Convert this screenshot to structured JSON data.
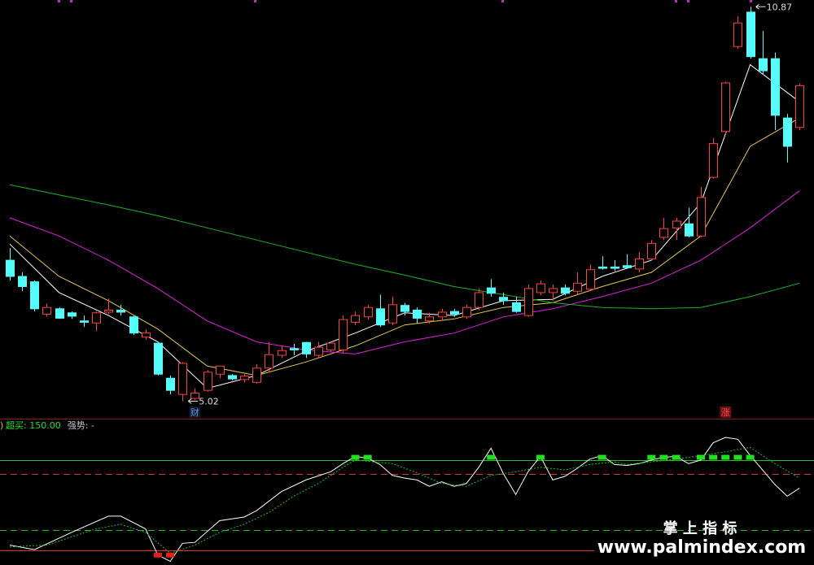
{
  "chart_data": [
    {
      "type": "candlestick",
      "ylim": [
        4.76,
        10.97
      ],
      "up_color": "#ff4040",
      "down_color": "#54fcfc",
      "open": [
        7.11,
        6.87,
        6.79,
        6.31,
        6.39,
        6.33,
        6.21,
        6.18,
        6.34,
        6.37,
        6.27,
        5.97,
        5.88,
        5.36,
        5.12,
        5.06,
        5.18,
        5.42,
        5.4,
        5.34,
        5.3,
        5.51,
        5.7,
        5.8,
        5.89,
        5.7,
        5.78,
        5.78,
        6.19,
        6.27,
        6.39,
        6.18,
        6.44,
        6.37,
        6.21,
        6.27,
        6.35,
        6.27,
        6.41,
        6.7,
        6.56,
        6.48,
        6.29,
        6.63,
        6.63,
        6.7,
        6.65,
        6.68,
        7.01,
        7.01,
        7.03,
        6.98,
        7.13,
        7.45,
        7.59,
        7.65,
        7.47,
        8.34,
        9.02,
        10.28,
        10.79,
        10.1,
        10.1,
        9.22,
        9.08
      ],
      "close": [
        6.87,
        6.72,
        6.39,
        6.41,
        6.25,
        6.28,
        6.19,
        6.33,
        6.37,
        6.34,
        6.03,
        6.03,
        5.42,
        5.18,
        5.58,
        5.14,
        5.45,
        5.54,
        5.35,
        5.39,
        5.51,
        5.71,
        5.77,
        5.78,
        5.72,
        5.82,
        5.88,
        6.23,
        6.29,
        6.41,
        6.15,
        6.45,
        6.35,
        6.25,
        6.27,
        6.34,
        6.31,
        6.41,
        6.63,
        6.62,
        6.51,
        6.35,
        6.69,
        6.76,
        6.69,
        6.62,
        6.77,
        6.97,
        6.99,
        6.99,
        7.0,
        7.13,
        7.36,
        7.58,
        7.69,
        7.47,
        8.04,
        8.84,
        9.74,
        10.63,
        10.13,
        9.92,
        9.26,
        8.8,
        9.7
      ],
      "high": [
        7.29,
        6.93,
        6.81,
        6.47,
        6.41,
        6.35,
        6.29,
        6.35,
        6.54,
        6.45,
        6.29,
        6.09,
        5.9,
        5.4,
        5.6,
        5.21,
        5.48,
        5.54,
        5.42,
        5.42,
        5.57,
        5.9,
        5.84,
        5.87,
        5.9,
        5.9,
        5.9,
        6.29,
        6.35,
        6.45,
        6.6,
        6.57,
        6.48,
        6.41,
        6.33,
        6.39,
        6.39,
        6.45,
        6.69,
        6.83,
        6.63,
        6.57,
        6.75,
        6.81,
        6.75,
        6.75,
        6.93,
        7.05,
        7.17,
        7.11,
        7.2,
        7.23,
        7.41,
        7.74,
        7.74,
        7.89,
        8.2,
        8.92,
        9.76,
        10.73,
        10.87,
        10.51,
        10.19,
        9.28,
        9.73
      ],
      "low": [
        6.81,
        6.65,
        6.35,
        6.27,
        6.24,
        6.24,
        6.12,
        6.06,
        6.31,
        6.29,
        6.0,
        5.93,
        5.4,
        5.12,
        5.02,
        5.04,
        5.16,
        5.36,
        5.33,
        5.3,
        5.28,
        5.45,
        5.66,
        5.7,
        5.66,
        5.66,
        5.75,
        5.72,
        6.15,
        6.23,
        6.12,
        6.15,
        6.29,
        6.17,
        6.17,
        6.21,
        6.27,
        6.24,
        6.37,
        6.57,
        6.45,
        6.33,
        6.27,
        6.59,
        6.51,
        6.59,
        6.6,
        6.65,
        6.97,
        6.95,
        6.98,
        6.93,
        7.11,
        7.41,
        7.41,
        7.45,
        7.45,
        8.32,
        8.98,
        10.25,
        10.1,
        9.86,
        9.04,
        8.56,
        9.04
      ],
      "moving_averages": [
        {
          "color": "#ffffff",
          "x": [
            0,
            4,
            8,
            12,
            16,
            20,
            24,
            28,
            32,
            36,
            40,
            44,
            48,
            52,
            56,
            60,
            64
          ],
          "values": [
            7.35,
            6.63,
            6.29,
            5.9,
            5.21,
            5.4,
            5.76,
            6.03,
            6.33,
            6.29,
            6.51,
            6.53,
            6.87,
            7.11,
            7.96,
            10.01,
            9.46
          ]
        },
        {
          "color": "#e8c850",
          "x": [
            0,
            4,
            8,
            12,
            16,
            20,
            24,
            28,
            32,
            36,
            40,
            44,
            48,
            52,
            56,
            60,
            64
          ],
          "values": [
            7.47,
            6.87,
            6.51,
            6.09,
            5.54,
            5.4,
            5.6,
            5.84,
            6.15,
            6.24,
            6.41,
            6.48,
            6.72,
            6.93,
            7.47,
            8.8,
            9.22
          ]
        },
        {
          "color": "#e020e0",
          "x": [
            0,
            4,
            8,
            12,
            16,
            20,
            24,
            28,
            32,
            36,
            40,
            44,
            48,
            52,
            56,
            60,
            64
          ],
          "values": [
            7.74,
            7.47,
            7.11,
            6.69,
            6.21,
            5.9,
            5.78,
            5.72,
            5.9,
            6.03,
            6.27,
            6.39,
            6.57,
            6.77,
            7.11,
            7.59,
            8.14
          ]
        },
        {
          "color": "#20b020",
          "x": [
            0,
            4,
            8,
            12,
            16,
            20,
            24,
            28,
            32,
            36,
            40,
            44,
            48,
            52,
            56,
            60,
            64
          ],
          "values": [
            8.23,
            8.08,
            7.93,
            7.77,
            7.59,
            7.41,
            7.23,
            7.05,
            6.89,
            6.72,
            6.6,
            6.48,
            6.41,
            6.39,
            6.41,
            6.57,
            6.77
          ]
        }
      ],
      "annotations": [
        {
          "x": 60,
          "value": 10.87
        },
        {
          "x": 14,
          "value": 5.02
        }
      ],
      "events": [
        {
          "x": 15,
          "label": "财",
          "color": "#5b9bd5"
        },
        {
          "x": 58,
          "label": "涨",
          "color": "#ff5050"
        }
      ]
    },
    {
      "type": "oscillator",
      "ylim": [
        -16,
        143
      ],
      "label_prefix": ")",
      "labels": [
        {
          "text": "超买: 150.00",
          "color": "#20e020"
        },
        {
          "text": "强势: -",
          "color": "#c0c0c0"
        }
      ],
      "levels": [
        {
          "value": 100,
          "color": "#20c020",
          "style": "solid"
        },
        {
          "value": 85,
          "color": "#e03030",
          "style": "dashed"
        },
        {
          "value": 23,
          "color": "#20c020",
          "style": "dashed"
        },
        {
          "value": 0,
          "color": "#e03030",
          "style": "solid"
        }
      ],
      "series": [
        {
          "color": "#ffffff",
          "style": "solid",
          "x": [
            0,
            2,
            5,
            8,
            9,
            11,
            12,
            13,
            14,
            15,
            17,
            19,
            20,
            22,
            24,
            26,
            27,
            28,
            29,
            30,
            31,
            32,
            33,
            34,
            35,
            36,
            37,
            38,
            39,
            40,
            41,
            42,
            43,
            44,
            45,
            46,
            47,
            48,
            49,
            50,
            51,
            52,
            53,
            54,
            55,
            56,
            57,
            58,
            59,
            60,
            61,
            62,
            63,
            64
          ],
          "values": [
            6,
            1,
            20,
            38,
            38,
            24,
            -5,
            -12,
            8,
            9,
            33,
            37,
            44,
            65,
            78,
            87,
            96,
            104,
            102,
            95,
            83,
            80,
            78,
            71,
            76,
            71,
            74,
            92,
            113,
            85,
            62,
            87,
            104,
            78,
            82,
            91,
            101,
            105,
            95,
            94,
            96,
            100,
            103,
            104,
            96,
            100,
            119,
            125,
            123,
            105,
            89,
            73,
            60,
            69
          ]
        },
        {
          "color": "#20c020",
          "style": "dotted",
          "x": [
            0,
            3,
            7,
            9,
            11,
            13,
            15,
            17,
            19,
            21,
            23,
            25,
            27,
            28,
            31,
            33,
            35,
            37,
            39,
            41,
            43,
            45,
            47,
            49,
            50,
            52,
            54,
            56,
            58,
            60,
            62,
            64
          ],
          "values": [
            4,
            6,
            24,
            29,
            20,
            -3,
            6,
            20,
            29,
            42,
            60,
            74,
            92,
            100,
            96,
            86,
            74,
            71,
            83,
            87,
            92,
            89,
            95,
            98,
            95,
            98,
            101,
            105,
            109,
            114,
            96,
            80
          ]
        }
      ],
      "signals": [
        {
          "color": "#20e020",
          "x": [
            28,
            29,
            39,
            43,
            48,
            52,
            53,
            54,
            56,
            57,
            58,
            59,
            60
          ],
          "values": [
            103,
            103,
            103,
            103,
            103,
            103,
            103,
            103,
            103,
            103,
            103,
            103,
            103
          ]
        },
        {
          "color": "#e02020",
          "x": [
            12,
            13
          ],
          "values": [
            -5,
            -5
          ]
        }
      ]
    }
  ],
  "watermark": {
    "line1": "掌 上 指 标",
    "line2": "www.palmindex.com"
  }
}
